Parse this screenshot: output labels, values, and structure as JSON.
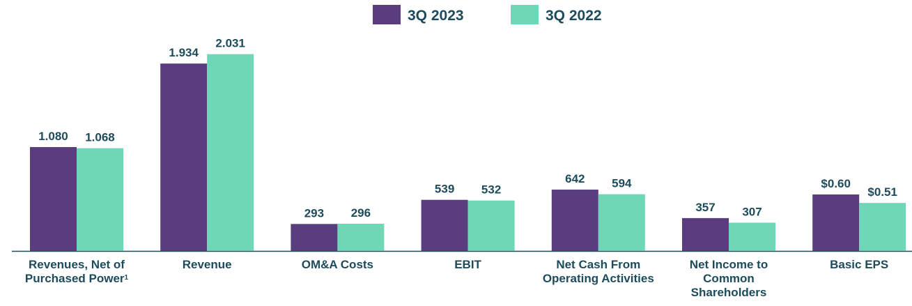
{
  "chart_data": {
    "type": "bar",
    "categories": [
      "Revenues, Net of Purchased Power",
      "Revenue",
      "OM&A Costs",
      "EBIT",
      "Net Cash From Operating Activities",
      "Net Income to Common Shareholders",
      "Basic EPS"
    ],
    "category_notes": [
      "1",
      null,
      null,
      null,
      null,
      null,
      null
    ],
    "series": [
      {
        "name": "3Q 2023",
        "color": "#5a3d7e",
        "values": [
          1.08,
          1.934,
          293,
          539,
          642,
          357,
          0.6
        ],
        "value_labels": [
          "1.080",
          "1.934",
          "293",
          "539",
          "642",
          "357",
          "$0.60"
        ]
      },
      {
        "name": "3Q 2022",
        "color": "#6fd7b8",
        "values": [
          1.068,
          2.031,
          296,
          532,
          594,
          307,
          0.51
        ],
        "value_labels": [
          "1.068",
          "2.031",
          "296",
          "532",
          "594",
          "307",
          "$0.51"
        ]
      }
    ]
  }
}
